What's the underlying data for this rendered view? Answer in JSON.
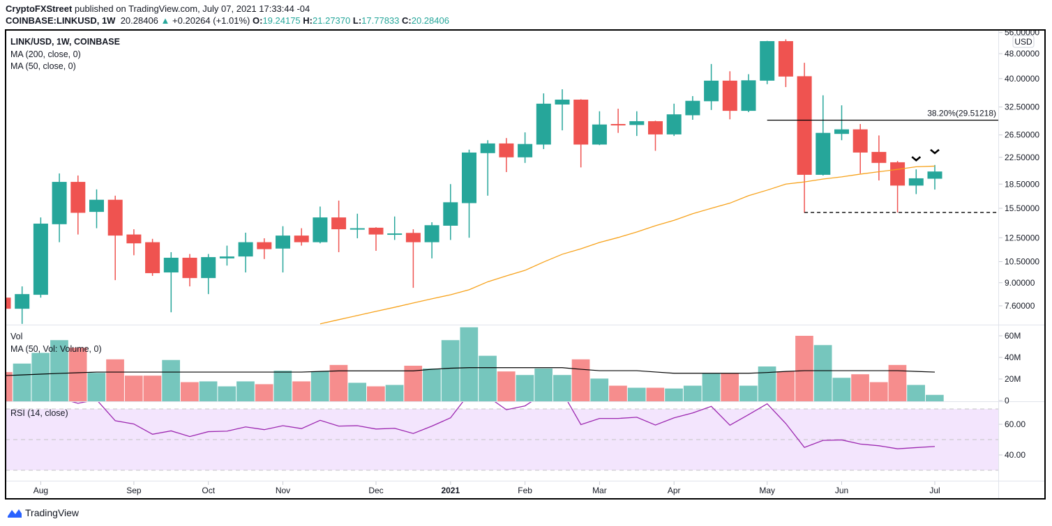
{
  "header": {
    "publisher": "CryptoFXStreet",
    "published_text": "published on TradingView.com, July 07, 2021 17:33:44 -04",
    "symbol": "COINBASE:LINKUSD, 1W",
    "last": "20.28406",
    "change": "+0.20264 (+1.01%)",
    "o_label": "O:",
    "o": "19.24175",
    "h_label": "H:",
    "h": "21.27370",
    "l_label": "L:",
    "l": "17.77833",
    "c_label": "C:",
    "c": "20.28406"
  },
  "legend": {
    "title": "LINK/USD, 1W, COINBASE",
    "ma200": "MA (200, close, 0)",
    "ma50": "MA (50, close, 0)",
    "vol": "Vol",
    "vol_ma": "MA (50, Vol: Volume, 0)",
    "rsi": "RSI (14, close)"
  },
  "footer": {
    "brand": "TradingView"
  },
  "colors": {
    "up": "#26a69a",
    "down": "#ef5350",
    "vol_up": "#76c6bd",
    "vol_down": "#f68d8d",
    "ma50": "#f7a21b",
    "vol_ma": "#000000",
    "rsi": "#9c27b0",
    "rsi_band": "#f3e5fd"
  },
  "chart_data": [
    {
      "type": "candlestick",
      "title": "LINK/USD, 1W, COINBASE",
      "y_scale": "log",
      "y_unit": "USD",
      "y_ticks": [
        "56.00000",
        "48.00000",
        "40.00000",
        "32.50000",
        "26.50000",
        "22.50000",
        "18.50000",
        "15.50000",
        "12.50000",
        "10.50000",
        "9.00000",
        "7.60000"
      ],
      "x_labels": [
        {
          "label": "Aug",
          "at": 2
        },
        {
          "label": "Sep",
          "at": 7
        },
        {
          "label": "Oct",
          "at": 11
        },
        {
          "label": "Nov",
          "at": 15
        },
        {
          "label": "Dec",
          "at": 20
        },
        {
          "label": "2021",
          "at": 24,
          "bold": true
        },
        {
          "label": "Feb",
          "at": 28
        },
        {
          "label": "Mar",
          "at": 32
        },
        {
          "label": "Apr",
          "at": 36
        },
        {
          "label": "May",
          "at": 41
        },
        {
          "label": "Jun",
          "at": 45
        },
        {
          "label": "Jul",
          "at": 50
        }
      ],
      "candles": [
        [
          8.07,
          8.07,
          7.44,
          7.44
        ],
        [
          7.44,
          8.76,
          6.66,
          8.28
        ],
        [
          8.24,
          14.5,
          8.07,
          13.86
        ],
        [
          13.8,
          20.0,
          12.1,
          18.8
        ],
        [
          18.8,
          19.7,
          12.8,
          15.0
        ],
        [
          15.1,
          17.8,
          13.4,
          16.5
        ],
        [
          16.5,
          17.0,
          9.17,
          12.7
        ],
        [
          12.8,
          13.3,
          11.0,
          12.0
        ],
        [
          12.1,
          12.4,
          9.46,
          9.65
        ],
        [
          9.7,
          11.25,
          7.25,
          10.8
        ],
        [
          10.8,
          11.1,
          8.76,
          9.31
        ],
        [
          9.31,
          11.1,
          8.28,
          10.85
        ],
        [
          10.75,
          11.8,
          10.2,
          10.9
        ],
        [
          10.9,
          12.97,
          9.7,
          12.1
        ],
        [
          12.1,
          12.45,
          10.7,
          11.5
        ],
        [
          11.55,
          13.6,
          9.7,
          12.7
        ],
        [
          12.7,
          13.4,
          11.8,
          12.1
        ],
        [
          12.1,
          15.7,
          12.0,
          14.5
        ],
        [
          14.5,
          16.4,
          11.25,
          13.3
        ],
        [
          13.3,
          14.9,
          12.45,
          13.4
        ],
        [
          13.45,
          13.5,
          11.36,
          12.8
        ],
        [
          12.8,
          14.6,
          12.3,
          12.9
        ],
        [
          12.95,
          13.3,
          8.67,
          12.1
        ],
        [
          12.1,
          14.0,
          10.75,
          13.7
        ],
        [
          13.65,
          18.5,
          12.3,
          16.2
        ],
        [
          16.1,
          23.8,
          12.5,
          23.3
        ],
        [
          23.2,
          25.5,
          17.0,
          24.9
        ],
        [
          24.9,
          25.9,
          20.2,
          22.5
        ],
        [
          22.5,
          27.0,
          21.6,
          24.8
        ],
        [
          24.7,
          35.9,
          23.9,
          33.3
        ],
        [
          33.1,
          37.0,
          27.4,
          34.3
        ],
        [
          34.3,
          34.4,
          20.9,
          24.7
        ],
        [
          24.7,
          31.5,
          24.6,
          28.6
        ],
        [
          28.7,
          32.1,
          26.9,
          28.5
        ],
        [
          28.5,
          31.5,
          26.3,
          29.3
        ],
        [
          29.3,
          29.4,
          23.6,
          26.6
        ],
        [
          26.6,
          33.3,
          26.3,
          30.8
        ],
        [
          30.6,
          35.2,
          29.6,
          34.0
        ],
        [
          33.9,
          44.5,
          31.8,
          39.4
        ],
        [
          39.4,
          42.2,
          29.7,
          31.6
        ],
        [
          31.6,
          41.3,
          31.3,
          39.5
        ],
        [
          39.4,
          52.7,
          38.4,
          52.6
        ],
        [
          52.6,
          53.3,
          37.6,
          40.6
        ],
        [
          40.7,
          44.9,
          15.0,
          19.8
        ],
        [
          19.8,
          35.4,
          19.7,
          26.9
        ],
        [
          26.7,
          32.9,
          25.5,
          27.6
        ],
        [
          27.6,
          28.7,
          20.0,
          23.3
        ],
        [
          23.4,
          26.4,
          19.0,
          21.6
        ],
        [
          21.7,
          21.9,
          15.04,
          18.3
        ],
        [
          18.3,
          20.6,
          17.2,
          19.3
        ],
        [
          19.24175,
          21.2737,
          17.77833,
          20.28406
        ]
      ],
      "candle_fields": [
        "open",
        "high",
        "low",
        "close"
      ],
      "ma50": [
        null,
        null,
        null,
        null,
        null,
        null,
        null,
        null,
        null,
        null,
        null,
        null,
        null,
        null,
        null,
        null,
        null,
        6.66,
        6.87,
        7.08,
        7.3,
        7.52,
        7.76,
        8.0,
        8.24,
        8.55,
        9.06,
        9.46,
        9.85,
        10.47,
        11.08,
        11.53,
        12.08,
        12.52,
        13.04,
        13.65,
        14.2,
        14.9,
        15.5,
        16.1,
        17.0,
        17.7,
        18.5,
        18.8,
        19.2,
        19.5,
        19.9,
        20.25,
        20.6,
        21.0,
        21.1
      ],
      "fib_level": {
        "label": "38.20%(29.51218)",
        "value": 29.51218,
        "from": 41
      },
      "support_level": {
        "value": 15.04,
        "from": 43
      },
      "markers": [
        {
          "at": 49,
          "icon": "chevron-down-icon"
        },
        {
          "at": 50,
          "icon": "chevron-down-icon"
        }
      ]
    },
    {
      "type": "bar",
      "title": "Vol",
      "y_ticks": [
        "60M",
        "40M",
        "20M",
        "0"
      ],
      "values_millions": [
        26.4,
        34.3,
        44.2,
        56.0,
        49.0,
        25.7,
        38.2,
        23.1,
        23.1,
        37.6,
        17.1,
        17.8,
        13.2,
        17.8,
        15.2,
        27.7,
        17.8,
        27.0,
        33.0,
        16.5,
        13.2,
        14.5,
        32.3,
        29.7,
        56.0,
        67.9,
        41.5,
        27.0,
        23.7,
        29.7,
        23.7,
        38.2,
        20.4,
        13.8,
        11.9,
        11.9,
        11.2,
        13.8,
        25.1,
        25.1,
        13.8,
        31.6,
        27.0,
        60.0,
        51.4,
        21.1,
        24.4,
        17.1,
        33.0,
        14.5,
        5.3
      ],
      "ma50_millions": [
        23.1,
        23.8,
        24.5,
        25.2,
        25.8,
        26.4,
        26.4,
        26.4,
        26.4,
        26.4,
        26.4,
        26.4,
        26.4,
        26.4,
        26.4,
        26.4,
        26.4,
        27.0,
        27.5,
        27.5,
        27.5,
        27.5,
        27.5,
        29.0,
        30.0,
        30.5,
        30.5,
        30.5,
        30.5,
        30.5,
        30.5,
        29.0,
        27.7,
        27.7,
        27.7,
        26.5,
        25.3,
        25.3,
        25.3,
        25.3,
        25.3,
        26.0,
        27.0,
        27.7,
        27.7,
        27.7,
        27.7,
        27.7,
        27.7,
        27.0,
        26.4
      ]
    },
    {
      "type": "line",
      "title": "RSI (14, close)",
      "y_ticks": [
        "60.00",
        "40.00"
      ],
      "band": [
        30,
        70
      ],
      "midline": 50,
      "values": [
        null,
        null,
        null,
        77,
        73.7,
        76,
        62.3,
        60.2,
        53.5,
        55.7,
        52.0,
        55.2,
        55.5,
        58.3,
        56.5,
        59.1,
        57.2,
        62.6,
        58.8,
        59.1,
        56.9,
        57.4,
        54.0,
        58.8,
        64.2,
        80,
        78,
        69.5,
        72,
        80,
        81,
        59.8,
        63.8,
        63.8,
        64.6,
        59.5,
        64.2,
        67.4,
        71.7,
        59.4,
        66.3,
        73.4,
        60.5,
        44.9,
        49.5,
        49.8,
        47.1,
        46.0,
        44.0,
        44.8,
        45.5
      ]
    }
  ]
}
